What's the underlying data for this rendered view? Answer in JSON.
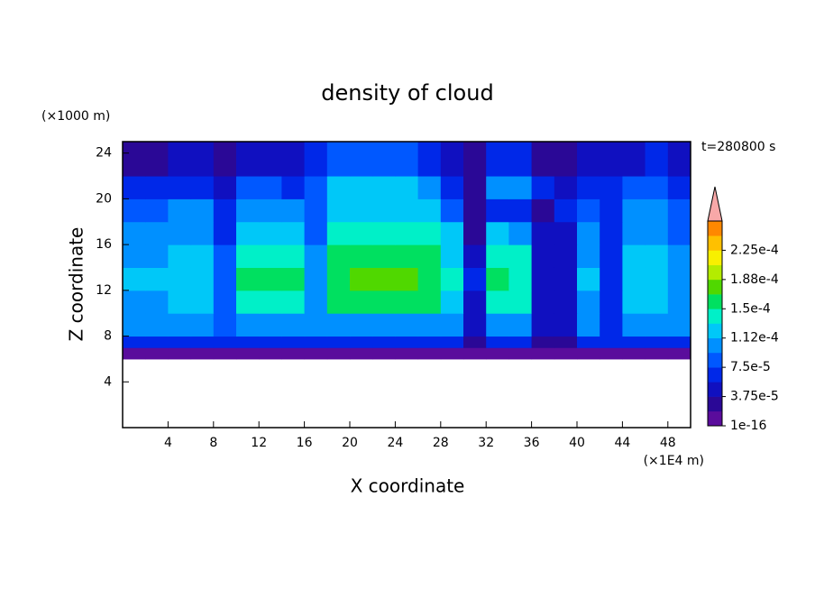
{
  "chart_data": {
    "type": "contourf",
    "title": "density of cloud",
    "x_label": "X coordinate",
    "x_unit": "(×1E4 m)",
    "y_label": "Z coordinate",
    "y_unit": "(×1000 m)",
    "annotation": "t=280800 s",
    "xlim": [
      0,
      50
    ],
    "ylim": [
      0,
      25
    ],
    "xticks": [
      4,
      8,
      12,
      16,
      20,
      24,
      28,
      32,
      36,
      40,
      44,
      48
    ],
    "yticks": [
      4,
      8,
      12,
      16,
      20,
      24
    ],
    "x_edges": [
      0,
      2,
      4,
      6,
      8,
      10,
      12,
      14,
      16,
      18,
      20,
      22,
      24,
      26,
      28,
      30,
      32,
      34,
      36,
      38,
      40,
      42,
      44,
      46,
      48,
      50
    ],
    "y_edges": [
      6,
      7,
      8,
      10,
      12,
      14,
      16,
      18,
      20,
      22,
      25
    ],
    "values": [
      [
        1e-05,
        1e-05,
        1e-05,
        1e-05,
        1e-05,
        1e-05,
        1e-05,
        1e-05,
        1e-05,
        1e-05,
        1e-05,
        1e-05,
        1e-05,
        1e-05,
        1e-05,
        1e-05,
        1e-05,
        1e-05,
        1e-05,
        1e-05,
        1e-05,
        1e-05,
        1e-05,
        1e-05,
        1e-05
      ],
      [
        6e-05,
        6e-05,
        6e-05,
        6e-05,
        6e-05,
        6e-05,
        6e-05,
        6e-05,
        6e-05,
        6e-05,
        6e-05,
        6e-05,
        6e-05,
        6e-05,
        6e-05,
        3e-05,
        6e-05,
        6e-05,
        3e-05,
        3e-05,
        6e-05,
        6e-05,
        6e-05,
        6e-05,
        6e-05
      ],
      [
        0.00011,
        0.00011,
        0.00011,
        0.00011,
        8e-05,
        0.00011,
        0.00011,
        0.00011,
        0.0001,
        0.00011,
        0.00011,
        0.00011,
        0.00011,
        0.00011,
        0.00011,
        5e-05,
        0.00011,
        0.00011,
        4e-05,
        4e-05,
        0.00011,
        6e-05,
        0.00011,
        0.00011,
        0.0001
      ],
      [
        0.00011,
        0.00011,
        0.00012,
        0.00012,
        8e-05,
        0.00014,
        0.00014,
        0.00014,
        0.0001,
        0.00015,
        0.00015,
        0.00015,
        0.00015,
        0.00015,
        0.00013,
        5e-05,
        0.00014,
        0.00014,
        4e-05,
        4e-05,
        0.00011,
        6e-05,
        0.00012,
        0.00012,
        0.0001
      ],
      [
        0.00012,
        0.00012,
        0.00013,
        0.00013,
        9e-05,
        0.00015,
        0.00016,
        0.00015,
        0.00011,
        0.00016,
        0.00017,
        0.00017,
        0.00017,
        0.00016,
        0.00014,
        6e-05,
        0.00015,
        0.00014,
        5e-05,
        4e-05,
        0.00012,
        7e-05,
        0.00013,
        0.00012,
        0.0001
      ],
      [
        0.00011,
        0.00011,
        0.00012,
        0.00012,
        8e-05,
        0.00014,
        0.00014,
        0.00014,
        0.0001,
        0.00015,
        0.00015,
        0.00015,
        0.00015,
        0.00015,
        0.00013,
        5e-05,
        0.00014,
        0.00014,
        4e-05,
        4e-05,
        0.00011,
        6e-05,
        0.00012,
        0.00012,
        0.0001
      ],
      [
        0.0001,
        0.0001,
        0.00011,
        0.00011,
        7e-05,
        0.00013,
        0.00013,
        0.00013,
        9e-05,
        0.00014,
        0.00014,
        0.00014,
        0.00014,
        0.00014,
        0.00012,
        3e-05,
        0.00012,
        0.0001,
        4e-05,
        5e-05,
        0.0001,
        6e-05,
        0.00011,
        0.00011,
        9e-05
      ],
      [
        9e-05,
        9e-05,
        0.0001,
        0.0001,
        6e-05,
        0.00011,
        0.00011,
        0.0001,
        9e-05,
        0.00013,
        0.00013,
        0.00013,
        0.00013,
        0.00012,
        8e-05,
        3e-05,
        6e-05,
        6e-05,
        3e-05,
        6e-05,
        9e-05,
        6e-05,
        0.0001,
        0.0001,
        8e-05
      ],
      [
        7e-05,
        6e-05,
        7e-05,
        7e-05,
        5e-05,
        9e-05,
        8e-05,
        7e-05,
        9e-05,
        0.00012,
        0.00012,
        0.00012,
        0.00012,
        0.0001,
        6e-05,
        3e-05,
        0.0001,
        0.0001,
        6e-05,
        5e-05,
        7e-05,
        6e-05,
        8e-05,
        8e-05,
        7e-05
      ],
      [
        3e-05,
        3e-05,
        4e-05,
        4e-05,
        3e-05,
        5e-05,
        4e-05,
        4e-05,
        6e-05,
        9e-05,
        9e-05,
        9e-05,
        9e-05,
        7e-05,
        4e-05,
        3e-05,
        7e-05,
        6e-05,
        3e-05,
        3e-05,
        5e-05,
        4e-05,
        5e-05,
        6e-05,
        5e-05
      ]
    ],
    "levels": [
      1e-16,
      1.875e-05,
      3.75e-05,
      5.625e-05,
      7.5e-05,
      9.375e-05,
      0.0001125,
      0.00013125,
      0.00015,
      0.00016875,
      0.0001875,
      0.00020625,
      0.000225,
      0.00024375,
      0.0002625
    ],
    "colors": [
      "#5a0c9c",
      "#2a0896",
      "#1010c0",
      "#0028e8",
      "#0058ff",
      "#0090ff",
      "#00c8f8",
      "#00f0c8",
      "#00e060",
      "#50d800",
      "#b4ec00",
      "#f8f000",
      "#ffc000",
      "#ff8800"
    ],
    "extend_color": "#f8a8a8",
    "cbar_ticks": [
      1e-16,
      {
        "value": 3.75e-05,
        "label": "3.75e-5"
      },
      {
        "value": 7.5e-05,
        "label": "7.5e-5"
      },
      {
        "value": 0.0001125,
        "label": "1.12e-4"
      },
      {
        "value": 0.00015,
        "label": "1.5e-4"
      },
      {
        "value": 0.0001875,
        "label": "1.88e-4"
      },
      {
        "value": 0.000225,
        "label": "2.25e-4"
      }
    ]
  }
}
